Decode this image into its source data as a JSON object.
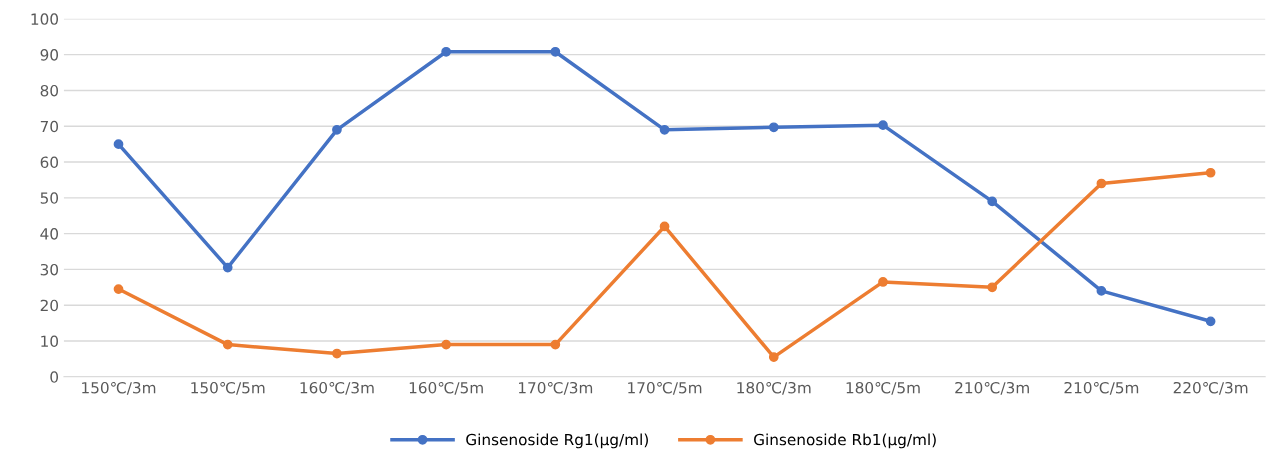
{
  "chart_data": {
    "type": "line",
    "categories": [
      "150℃/3m",
      "150℃/5m",
      "160℃/3m",
      "160℃/5m",
      "170℃/3m",
      "170℃/5m",
      "180℃/3m",
      "180℃/5m",
      "210℃/3m",
      "210℃/5m",
      "220℃/3m"
    ],
    "series": [
      {
        "name": "Ginsenoside Rg1(µg/ml)",
        "color": "#4472c4",
        "values": [
          65,
          30.5,
          69,
          90.8,
          90.8,
          69,
          69.7,
          70.3,
          49,
          24,
          15.5
        ]
      },
      {
        "name": "Ginsenoside Rb1(µg/ml)",
        "color": "#ed7d31",
        "values": [
          24.5,
          9,
          6.5,
          9,
          9,
          42,
          5.5,
          26.5,
          25,
          54,
          57
        ]
      }
    ],
    "ylim": [
      0,
      100
    ],
    "yticks": [
      0,
      10,
      20,
      30,
      40,
      50,
      60,
      70,
      80,
      90,
      100
    ],
    "grid": "y",
    "legend": "bottom",
    "marker": "circle",
    "line_style": "solid"
  }
}
